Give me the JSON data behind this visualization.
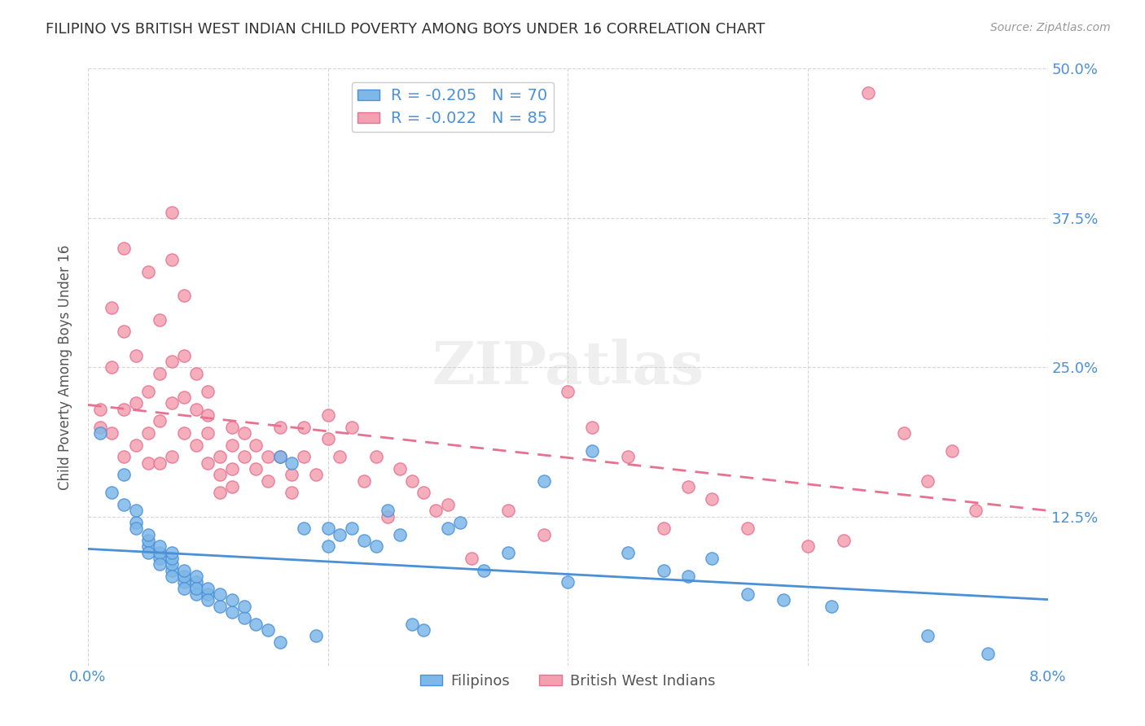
{
  "title": "FILIPINO VS BRITISH WEST INDIAN CHILD POVERTY AMONG BOYS UNDER 16 CORRELATION CHART",
  "source": "Source: ZipAtlas.com",
  "xlabel": "",
  "ylabel": "Child Poverty Among Boys Under 16",
  "xlim": [
    0.0,
    0.08
  ],
  "ylim": [
    0.0,
    0.5
  ],
  "xticks": [
    0.0,
    0.02,
    0.04,
    0.06,
    0.08
  ],
  "xtick_labels": [
    "0.0%",
    "",
    "",
    "",
    "8.0%"
  ],
  "ytick_labels_right": [
    "50.0%",
    "37.5%",
    "25.0%",
    "12.5%",
    ""
  ],
  "yticks_right": [
    0.5,
    0.375,
    0.25,
    0.125,
    0.0
  ],
  "filipinos_R": -0.205,
  "filipinos_N": 70,
  "bwi_R": -0.022,
  "bwi_N": 85,
  "filipino_color": "#7EB8E8",
  "bwi_color": "#F4A0B0",
  "filipino_line_color": "#4A90D9",
  "bwi_line_color": "#E87090",
  "background_color": "#FFFFFF",
  "grid_color": "#CCCCCC",
  "watermark": "ZIPatlas",
  "title_color": "#333333",
  "axis_label_color": "#4A90D9",
  "legend_r_color": "#4A90D9",
  "filipinos_x": [
    0.001,
    0.002,
    0.003,
    0.003,
    0.004,
    0.004,
    0.004,
    0.005,
    0.005,
    0.005,
    0.005,
    0.006,
    0.006,
    0.006,
    0.006,
    0.007,
    0.007,
    0.007,
    0.007,
    0.007,
    0.008,
    0.008,
    0.008,
    0.008,
    0.009,
    0.009,
    0.009,
    0.009,
    0.01,
    0.01,
    0.01,
    0.011,
    0.011,
    0.012,
    0.012,
    0.013,
    0.013,
    0.014,
    0.015,
    0.016,
    0.016,
    0.017,
    0.018,
    0.019,
    0.02,
    0.02,
    0.021,
    0.022,
    0.023,
    0.024,
    0.025,
    0.026,
    0.027,
    0.028,
    0.03,
    0.031,
    0.033,
    0.035,
    0.038,
    0.04,
    0.042,
    0.045,
    0.048,
    0.05,
    0.052,
    0.055,
    0.058,
    0.062,
    0.07,
    0.075
  ],
  "filipinos_y": [
    0.195,
    0.145,
    0.135,
    0.16,
    0.12,
    0.13,
    0.115,
    0.1,
    0.105,
    0.095,
    0.11,
    0.09,
    0.095,
    0.085,
    0.1,
    0.08,
    0.085,
    0.09,
    0.075,
    0.095,
    0.07,
    0.075,
    0.08,
    0.065,
    0.06,
    0.07,
    0.075,
    0.065,
    0.06,
    0.065,
    0.055,
    0.05,
    0.06,
    0.045,
    0.055,
    0.04,
    0.05,
    0.035,
    0.03,
    0.175,
    0.02,
    0.17,
    0.115,
    0.025,
    0.1,
    0.115,
    0.11,
    0.115,
    0.105,
    0.1,
    0.13,
    0.11,
    0.035,
    0.03,
    0.115,
    0.12,
    0.08,
    0.095,
    0.155,
    0.07,
    0.18,
    0.095,
    0.08,
    0.075,
    0.09,
    0.06,
    0.055,
    0.05,
    0.025,
    0.01
  ],
  "bwi_x": [
    0.001,
    0.001,
    0.002,
    0.002,
    0.002,
    0.003,
    0.003,
    0.003,
    0.003,
    0.004,
    0.004,
    0.004,
    0.005,
    0.005,
    0.005,
    0.005,
    0.006,
    0.006,
    0.006,
    0.006,
    0.007,
    0.007,
    0.007,
    0.007,
    0.007,
    0.008,
    0.008,
    0.008,
    0.008,
    0.009,
    0.009,
    0.009,
    0.01,
    0.01,
    0.01,
    0.01,
    0.011,
    0.011,
    0.011,
    0.012,
    0.012,
    0.012,
    0.012,
    0.013,
    0.013,
    0.014,
    0.014,
    0.015,
    0.015,
    0.016,
    0.016,
    0.017,
    0.017,
    0.018,
    0.018,
    0.019,
    0.02,
    0.02,
    0.021,
    0.022,
    0.023,
    0.024,
    0.025,
    0.026,
    0.027,
    0.028,
    0.029,
    0.03,
    0.032,
    0.035,
    0.038,
    0.04,
    0.042,
    0.045,
    0.048,
    0.05,
    0.052,
    0.055,
    0.06,
    0.063,
    0.065,
    0.068,
    0.07,
    0.072,
    0.074
  ],
  "bwi_y": [
    0.2,
    0.215,
    0.3,
    0.195,
    0.25,
    0.35,
    0.28,
    0.215,
    0.175,
    0.26,
    0.22,
    0.185,
    0.33,
    0.23,
    0.195,
    0.17,
    0.29,
    0.245,
    0.205,
    0.17,
    0.38,
    0.34,
    0.255,
    0.22,
    0.175,
    0.31,
    0.26,
    0.225,
    0.195,
    0.245,
    0.215,
    0.185,
    0.23,
    0.21,
    0.195,
    0.17,
    0.175,
    0.16,
    0.145,
    0.2,
    0.185,
    0.165,
    0.15,
    0.195,
    0.175,
    0.185,
    0.165,
    0.175,
    0.155,
    0.2,
    0.175,
    0.16,
    0.145,
    0.2,
    0.175,
    0.16,
    0.21,
    0.19,
    0.175,
    0.2,
    0.155,
    0.175,
    0.125,
    0.165,
    0.155,
    0.145,
    0.13,
    0.135,
    0.09,
    0.13,
    0.11,
    0.23,
    0.2,
    0.175,
    0.115,
    0.15,
    0.14,
    0.115,
    0.1,
    0.105,
    0.48,
    0.195,
    0.155,
    0.18,
    0.13
  ]
}
